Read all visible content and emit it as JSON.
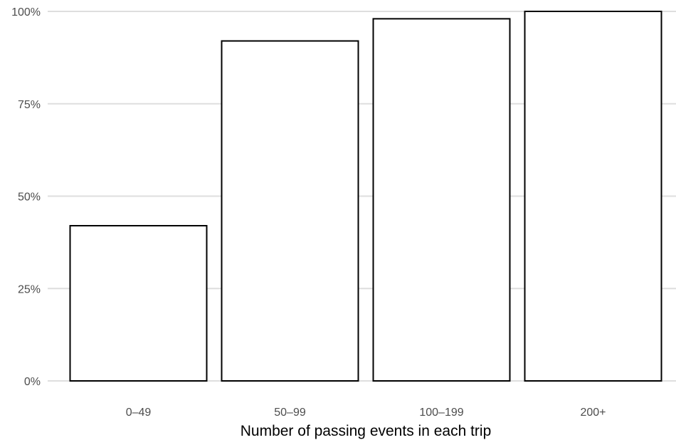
{
  "chart_data": {
    "type": "bar",
    "categories": [
      "0–49",
      "50–99",
      "100–199",
      "200+"
    ],
    "values": [
      42,
      92,
      98,
      100
    ],
    "xlabel": "Number of passing events in each trip",
    "ylabel": "",
    "ylim": [
      0,
      100
    ],
    "yticks": [
      0,
      25,
      50,
      75,
      100
    ],
    "ytick_labels": [
      "0%",
      "25%",
      "50%",
      "75%",
      "100%"
    ],
    "grid": true,
    "bar_fill": "#ffffff",
    "bar_stroke": "#000000",
    "grid_color": "#dedede"
  }
}
